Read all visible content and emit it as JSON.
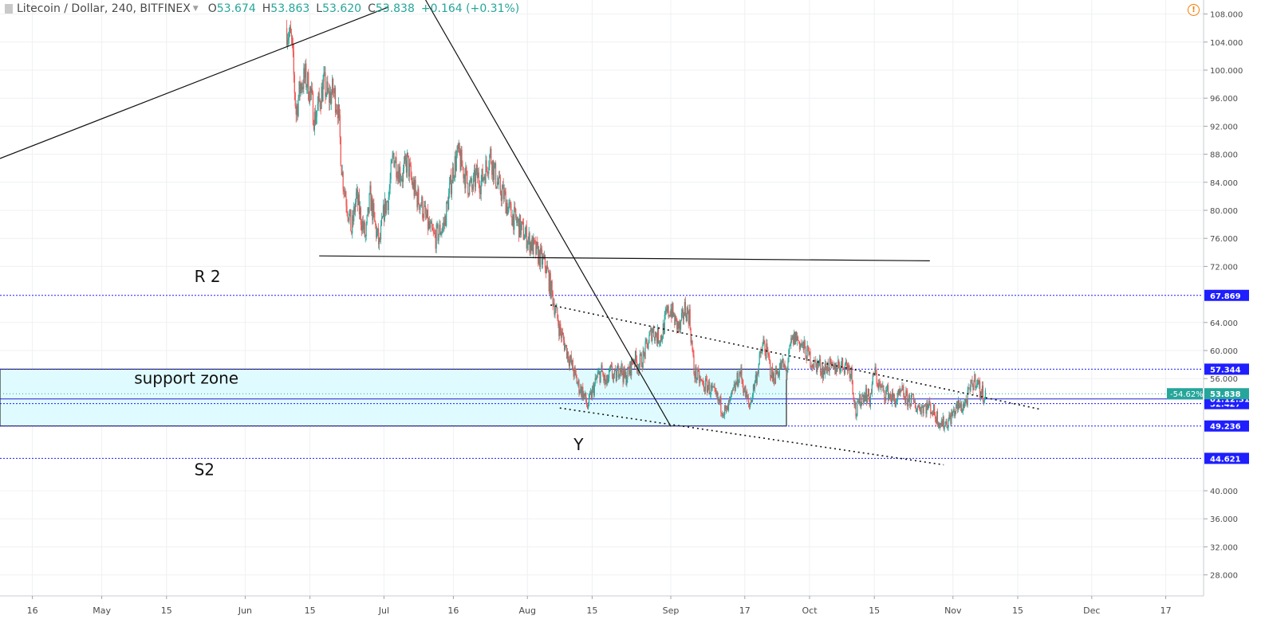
{
  "legend": {
    "symbol": "Litecoin / Dollar, 240, BITFINEX",
    "open_label": "O",
    "open": "53.674",
    "high_label": "H",
    "high": "53.863",
    "low_label": "L",
    "low": "53.620",
    "close_label": "C",
    "close": "53.838",
    "change": "+0.164 (+0.31%)"
  },
  "colors": {
    "up": "#26a69a",
    "down": "#ef5350",
    "level_line": "#1e1eff",
    "support_fill": "#e0fbff",
    "grid": "#eef0f3",
    "axis_text": "#4a4a4a"
  },
  "chart_data": {
    "type": "candlestick",
    "symbol": "Litecoin / Dollar",
    "interval": "240",
    "exchange": "BITFINEX",
    "x_tick_labels": [
      "16",
      "May",
      "15",
      "Jun",
      "15",
      "Jul",
      "16",
      "Aug",
      "15",
      "Sep",
      "17",
      "Oct",
      "15",
      "Nov",
      "15",
      "Dec",
      "17"
    ],
    "x_tick_dates": [
      "2018-04-16",
      "2018-05-01",
      "2018-05-15",
      "2018-06-01",
      "2018-06-15",
      "2018-07-01",
      "2018-07-16",
      "2018-08-01",
      "2018-08-15",
      "2018-09-01",
      "2018-09-17",
      "2018-10-01",
      "2018-10-15",
      "2018-11-01",
      "2018-11-15",
      "2018-12-01",
      "2018-12-17"
    ],
    "y_ticks": [
      108,
      104,
      100,
      96,
      92,
      88,
      84,
      80,
      76,
      72,
      64,
      60,
      56,
      40,
      36,
      32,
      28
    ],
    "y_tick_labels": [
      "108.000",
      "104.000",
      "100.000",
      "96.000",
      "92.000",
      "88.000",
      "84.000",
      "80.000",
      "76.000",
      "72.000",
      "64.000",
      "60.000",
      "56.000",
      "40.000",
      "36.000",
      "32.000",
      "28.000"
    ],
    "ylim": [
      25,
      110
    ],
    "xlim": [
      "2018-04-09",
      "2018-12-25"
    ],
    "grid": true,
    "price_path": [
      [
        "2018-06-10",
        106
      ],
      [
        "2018-06-11",
        104
      ],
      [
        "2018-06-12",
        94
      ],
      [
        "2018-06-13",
        98
      ],
      [
        "2018-06-14",
        99
      ],
      [
        "2018-06-15",
        97
      ],
      [
        "2018-06-16",
        93
      ],
      [
        "2018-06-18",
        98
      ],
      [
        "2018-06-19",
        96
      ],
      [
        "2018-06-20",
        97
      ],
      [
        "2018-06-21",
        95
      ],
      [
        "2018-06-22",
        85
      ],
      [
        "2018-06-23",
        81
      ],
      [
        "2018-06-24",
        77
      ],
      [
        "2018-06-25",
        82
      ],
      [
        "2018-06-26",
        79
      ],
      [
        "2018-06-27",
        76
      ],
      [
        "2018-06-28",
        82
      ],
      [
        "2018-06-29",
        78
      ],
      [
        "2018-06-30",
        75
      ],
      [
        "2018-07-01",
        80
      ],
      [
        "2018-07-02",
        82
      ],
      [
        "2018-07-03",
        88
      ],
      [
        "2018-07-04",
        86
      ],
      [
        "2018-07-05",
        85
      ],
      [
        "2018-07-06",
        87
      ],
      [
        "2018-07-07",
        84
      ],
      [
        "2018-07-08",
        82
      ],
      [
        "2018-07-09",
        81
      ],
      [
        "2018-07-10",
        79
      ],
      [
        "2018-07-11",
        77
      ],
      [
        "2018-07-12",
        76
      ],
      [
        "2018-07-13",
        77
      ],
      [
        "2018-07-14",
        78
      ],
      [
        "2018-07-15",
        82
      ],
      [
        "2018-07-16",
        86
      ],
      [
        "2018-07-17",
        88
      ],
      [
        "2018-07-18",
        86
      ],
      [
        "2018-07-19",
        84
      ],
      [
        "2018-07-20",
        83
      ],
      [
        "2018-07-21",
        85
      ],
      [
        "2018-07-22",
        84
      ],
      [
        "2018-07-23",
        86
      ],
      [
        "2018-07-24",
        88
      ],
      [
        "2018-07-25",
        85
      ],
      [
        "2018-07-26",
        83
      ],
      [
        "2018-07-27",
        82
      ],
      [
        "2018-07-28",
        80
      ],
      [
        "2018-07-29",
        79
      ],
      [
        "2018-07-30",
        78
      ],
      [
        "2018-07-31",
        77
      ],
      [
        "2018-08-01",
        76
      ],
      [
        "2018-08-02",
        75
      ],
      [
        "2018-08-03",
        74
      ],
      [
        "2018-08-04",
        73
      ],
      [
        "2018-08-05",
        72
      ],
      [
        "2018-08-06",
        69
      ],
      [
        "2018-08-07",
        66
      ],
      [
        "2018-08-08",
        63
      ],
      [
        "2018-08-09",
        61
      ],
      [
        "2018-08-10",
        59
      ],
      [
        "2018-08-11",
        57
      ],
      [
        "2018-08-12",
        55
      ],
      [
        "2018-08-13",
        54
      ],
      [
        "2018-08-14",
        52
      ],
      [
        "2018-08-15",
        54
      ],
      [
        "2018-08-16",
        56
      ],
      [
        "2018-08-17",
        57
      ],
      [
        "2018-08-18",
        55
      ],
      [
        "2018-08-19",
        57
      ],
      [
        "2018-08-20",
        56
      ],
      [
        "2018-08-21",
        58
      ],
      [
        "2018-08-22",
        56
      ],
      [
        "2018-08-23",
        57
      ],
      [
        "2018-08-24",
        59
      ],
      [
        "2018-08-25",
        58
      ],
      [
        "2018-08-26",
        59
      ],
      [
        "2018-08-27",
        61
      ],
      [
        "2018-08-28",
        63
      ],
      [
        "2018-08-29",
        62
      ],
      [
        "2018-08-30",
        62
      ],
      [
        "2018-08-31",
        65
      ],
      [
        "2018-09-01",
        66
      ],
      [
        "2018-09-02",
        64
      ],
      [
        "2018-09-03",
        63
      ],
      [
        "2018-09-04",
        66
      ],
      [
        "2018-09-05",
        65
      ],
      [
        "2018-09-06",
        57
      ],
      [
        "2018-09-07",
        56
      ],
      [
        "2018-09-08",
        55
      ],
      [
        "2018-09-09",
        55
      ],
      [
        "2018-09-10",
        54
      ],
      [
        "2018-09-11",
        53
      ],
      [
        "2018-09-12",
        52
      ],
      [
        "2018-09-13",
        51
      ],
      [
        "2018-09-14",
        53
      ],
      [
        "2018-09-15",
        55
      ],
      [
        "2018-09-16",
        57
      ],
      [
        "2018-09-17",
        54
      ],
      [
        "2018-09-18",
        52
      ],
      [
        "2018-09-19",
        55
      ],
      [
        "2018-09-20",
        58
      ],
      [
        "2018-09-21",
        61
      ],
      [
        "2018-09-22",
        59
      ],
      [
        "2018-09-23",
        56
      ],
      [
        "2018-09-24",
        57
      ],
      [
        "2018-09-25",
        58
      ],
      [
        "2018-09-26",
        57
      ],
      [
        "2018-09-27",
        61
      ],
      [
        "2018-09-28",
        62
      ],
      [
        "2018-09-29",
        61
      ],
      [
        "2018-09-30",
        60
      ],
      [
        "2018-10-01",
        59
      ],
      [
        "2018-10-02",
        58
      ],
      [
        "2018-10-03",
        58
      ],
      [
        "2018-10-04",
        57
      ],
      [
        "2018-10-05",
        58
      ],
      [
        "2018-10-06",
        57
      ],
      [
        "2018-10-07",
        58
      ],
      [
        "2018-10-08",
        58
      ],
      [
        "2018-10-09",
        58
      ],
      [
        "2018-10-10",
        57
      ],
      [
        "2018-10-11",
        51
      ],
      [
        "2018-10-12",
        53
      ],
      [
        "2018-10-13",
        54
      ],
      [
        "2018-10-14",
        53
      ],
      [
        "2018-10-15",
        57
      ],
      [
        "2018-10-16",
        55
      ],
      [
        "2018-10-17",
        54
      ],
      [
        "2018-10-18",
        54
      ],
      [
        "2018-10-19",
        53
      ],
      [
        "2018-10-20",
        53
      ],
      [
        "2018-10-21",
        54
      ],
      [
        "2018-10-22",
        53
      ],
      [
        "2018-10-23",
        53
      ],
      [
        "2018-10-24",
        52
      ],
      [
        "2018-10-25",
        52
      ],
      [
        "2018-10-26",
        52
      ],
      [
        "2018-10-27",
        52
      ],
      [
        "2018-10-28",
        51
      ],
      [
        "2018-10-29",
        50
      ],
      [
        "2018-10-30",
        49.5
      ],
      [
        "2018-10-31",
        50
      ],
      [
        "2018-11-01",
        51
      ],
      [
        "2018-11-02",
        52
      ],
      [
        "2018-11-03",
        52
      ],
      [
        "2018-11-04",
        53
      ],
      [
        "2018-11-05",
        55
      ],
      [
        "2018-11-06",
        56
      ],
      [
        "2018-11-07",
        54
      ],
      [
        "2018-11-08",
        53.8
      ]
    ],
    "drawings": {
      "trend_lines": [
        {
          "from": [
            "2018-04-09",
            87.4
          ],
          "to": [
            "2018-07-02",
            109
          ]
        },
        {
          "from": [
            "2018-07-10",
            110
          ],
          "to": [
            "2018-09-01",
            49.2
          ]
        },
        {
          "from": [
            "2018-06-17",
            73.5
          ],
          "to": [
            "2018-10-27",
            72.8
          ]
        }
      ],
      "dotted_channel": [
        {
          "from": [
            "2018-08-06",
            66.5
          ],
          "to": [
            "2018-11-20",
            51.6
          ]
        },
        {
          "from": [
            "2018-08-08",
            51.8
          ],
          "to": [
            "2018-10-30",
            43.7
          ]
        }
      ],
      "support_zone": {
        "x0": "2018-04-09",
        "x1": "2018-09-26",
        "y_top": 57.344,
        "y_bottom": 49.236,
        "mid_line": 53.1
      },
      "levels": [
        {
          "value": 67.869,
          "label": "67.869"
        },
        {
          "value": 57.344,
          "label": "57.344"
        },
        {
          "value": 52.427,
          "label": "52.427"
        },
        {
          "value": 49.236,
          "label": "49.236"
        },
        {
          "value": 44.621,
          "label": "44.621"
        }
      ],
      "current_price": {
        "value": 53.838,
        "label": "53.838",
        "change_label": "-54.62%"
      },
      "countdown": {
        "value": 53.1,
        "label": "01:12:31"
      }
    },
    "annotations": [
      {
        "text": "R 2",
        "at": [
          "2018-05-21",
          69.8
        ]
      },
      {
        "text": "support zone",
        "at": [
          "2018-05-08",
          55.3
        ]
      },
      {
        "text": "Y",
        "at": [
          "2018-08-11",
          45.8
        ]
      },
      {
        "text": "S2",
        "at": [
          "2018-05-21",
          42.2
        ]
      }
    ]
  }
}
